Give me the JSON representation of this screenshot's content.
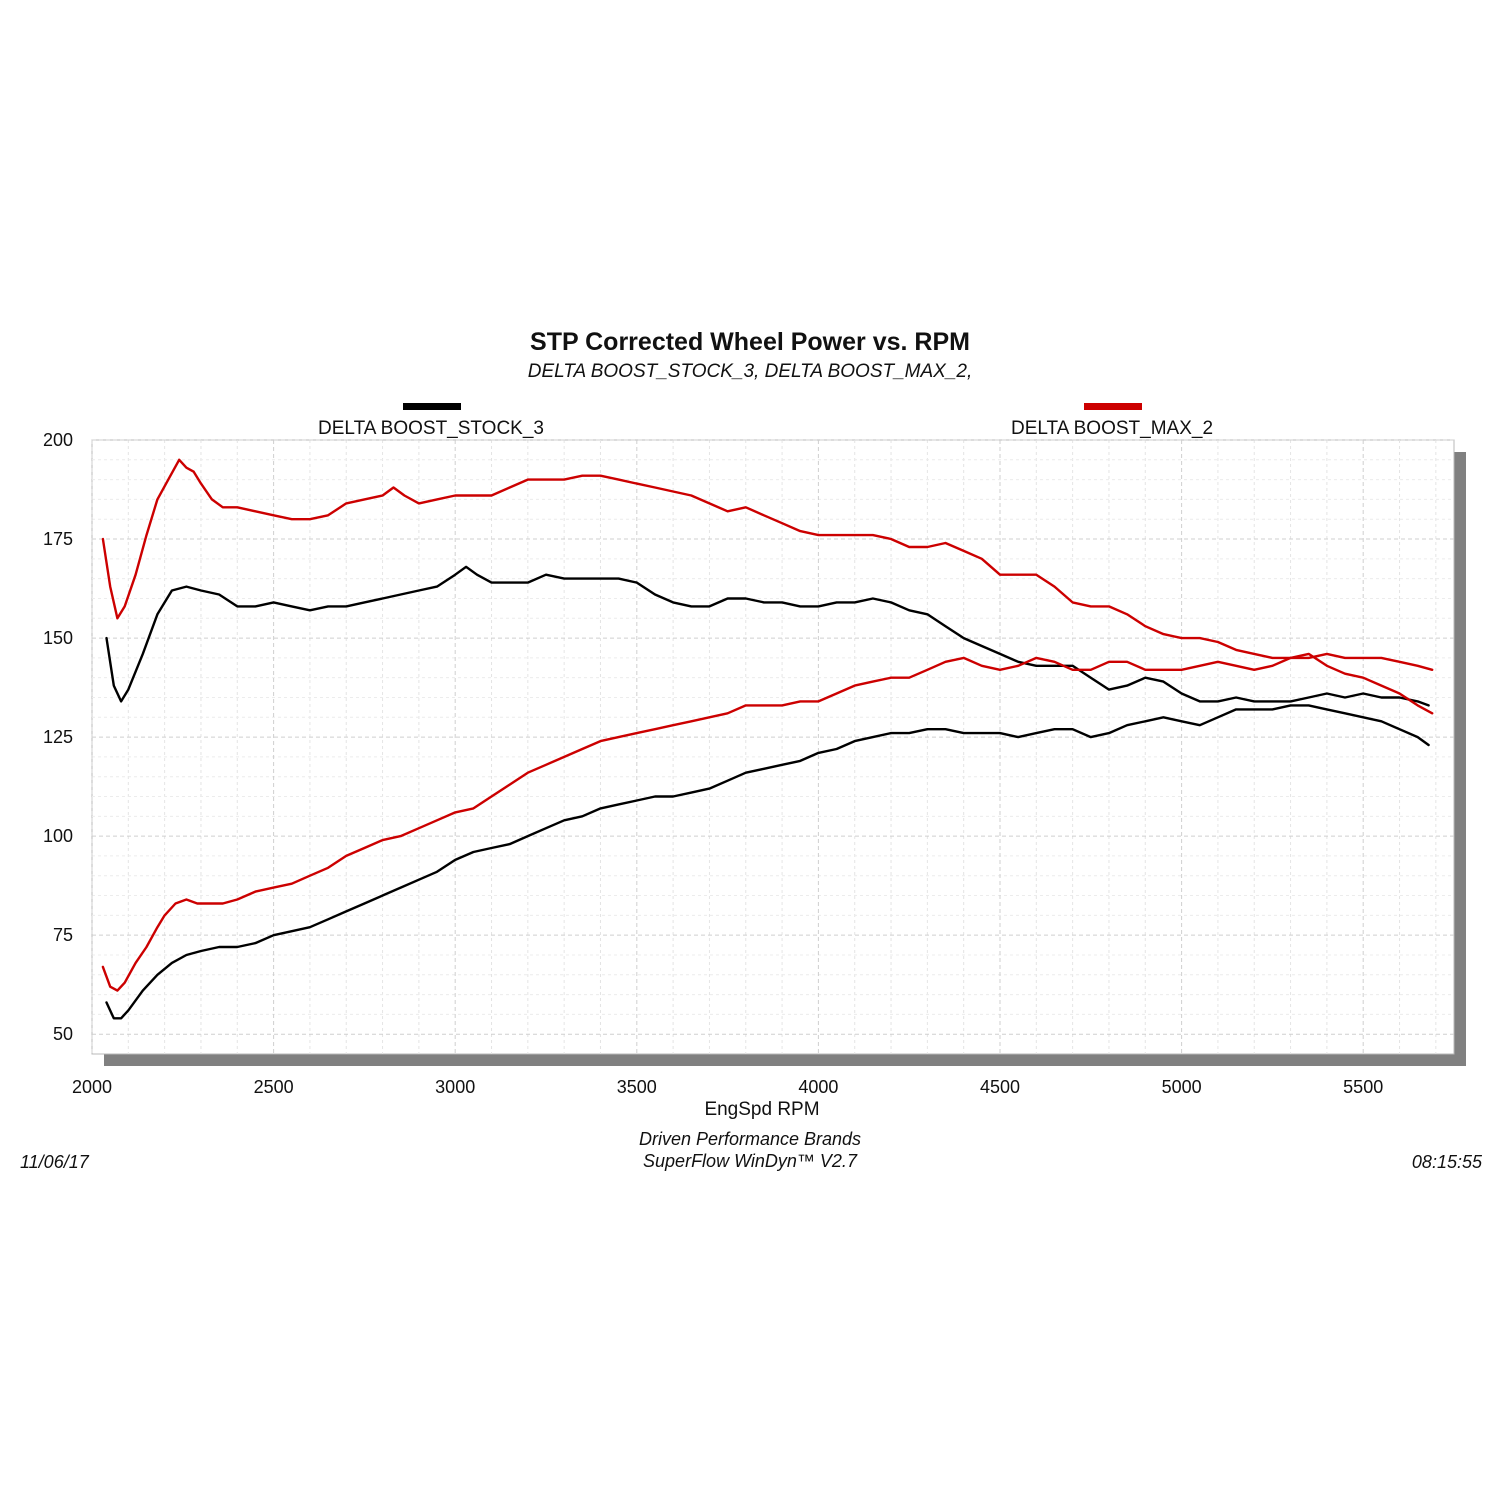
{
  "header": {
    "title": "STP Corrected Wheel Power vs. RPM",
    "subtitle": "DELTA BOOST_STOCK_3, DELTA BOOST_MAX_2,"
  },
  "legend": {
    "items": [
      {
        "label": "DELTA BOOST_STOCK_3",
        "color": "#000000"
      },
      {
        "label": "DELTA BOOST_MAX_2",
        "color": "#cc0000"
      }
    ]
  },
  "footer": {
    "date": "11/06/17",
    "time": "08:15:55",
    "company": "Driven Performance Brands",
    "software": "SuperFlow WinDyn™  V2.7"
  },
  "chart_data": {
    "type": "line",
    "title": "STP Corrected Wheel Power vs. RPM",
    "xlabel": "EngSpd  RPM",
    "ylabel": "",
    "xlim": [
      2000,
      5750
    ],
    "ylim": [
      45,
      200
    ],
    "xticks": [
      2000,
      2500,
      3000,
      3500,
      4000,
      4500,
      5000,
      5500
    ],
    "yticks": [
      50,
      75,
      100,
      125,
      150,
      175,
      200
    ],
    "grid": true,
    "legend_position": "top",
    "series": [
      {
        "name": "DELTA BOOST_STOCK_3",
        "color": "#000000",
        "curve": "power",
        "x": [
          2040,
          2060,
          2080,
          2100,
          2140,
          2180,
          2220,
          2260,
          2300,
          2350,
          2400,
          2450,
          2500,
          2550,
          2600,
          2650,
          2700,
          2750,
          2800,
          2850,
          2900,
          2950,
          3000,
          3030,
          3060,
          3100,
          3150,
          3200,
          3250,
          3300,
          3350,
          3400,
          3450,
          3500,
          3550,
          3600,
          3650,
          3700,
          3750,
          3800,
          3850,
          3900,
          3950,
          4000,
          4050,
          4100,
          4150,
          4200,
          4250,
          4300,
          4350,
          4400,
          4450,
          4500,
          4550,
          4600,
          4650,
          4700,
          4750,
          4800,
          4850,
          4900,
          4950,
          5000,
          5050,
          5100,
          5150,
          5200,
          5250,
          5300,
          5350,
          5400,
          5450,
          5500,
          5550,
          5600,
          5650,
          5680
        ],
        "y": [
          150,
          138,
          134,
          137,
          146,
          156,
          162,
          163,
          162,
          161,
          158,
          158,
          159,
          158,
          157,
          158,
          158,
          159,
          160,
          161,
          162,
          163,
          166,
          168,
          166,
          164,
          164,
          164,
          166,
          165,
          165,
          165,
          165,
          164,
          161,
          159,
          158,
          158,
          160,
          160,
          159,
          159,
          158,
          158,
          159,
          159,
          160,
          159,
          157,
          156,
          153,
          150,
          148,
          146,
          144,
          143,
          143,
          143,
          140,
          137,
          138,
          140,
          139,
          136,
          134,
          134,
          135,
          134,
          134,
          134,
          135,
          136,
          135,
          136,
          135,
          135,
          134,
          133
        ]
      },
      {
        "name": "DELTA BOOST_STOCK_3",
        "color": "#000000",
        "curve": "torque",
        "x": [
          2040,
          2060,
          2080,
          2100,
          2140,
          2180,
          2220,
          2260,
          2300,
          2350,
          2400,
          2450,
          2500,
          2550,
          2600,
          2650,
          2700,
          2750,
          2800,
          2850,
          2900,
          2950,
          3000,
          3050,
          3100,
          3150,
          3200,
          3250,
          3300,
          3350,
          3400,
          3450,
          3500,
          3550,
          3600,
          3650,
          3700,
          3750,
          3800,
          3850,
          3900,
          3950,
          4000,
          4050,
          4100,
          4150,
          4200,
          4250,
          4300,
          4350,
          4400,
          4450,
          4500,
          4550,
          4600,
          4650,
          4700,
          4750,
          4800,
          4850,
          4900,
          4950,
          5000,
          5050,
          5100,
          5150,
          5200,
          5250,
          5300,
          5350,
          5400,
          5450,
          5500,
          5550,
          5600,
          5650,
          5680
        ],
        "y": [
          58,
          54,
          54,
          56,
          61,
          65,
          68,
          70,
          71,
          72,
          72,
          73,
          75,
          76,
          77,
          79,
          81,
          83,
          85,
          87,
          89,
          91,
          94,
          96,
          97,
          98,
          100,
          102,
          104,
          105,
          107,
          108,
          109,
          110,
          110,
          111,
          112,
          114,
          116,
          117,
          118,
          119,
          121,
          122,
          124,
          125,
          126,
          126,
          127,
          127,
          126,
          126,
          126,
          125,
          126,
          127,
          127,
          125,
          126,
          128,
          129,
          130,
          129,
          128,
          130,
          132,
          132,
          132,
          133,
          133,
          132,
          131,
          130,
          129,
          127,
          125,
          123
        ]
      },
      {
        "name": "DELTA BOOST_MAX_2",
        "color": "#cc0000",
        "curve": "power",
        "x": [
          2030,
          2050,
          2070,
          2090,
          2120,
          2150,
          2180,
          2210,
          2240,
          2260,
          2280,
          2300,
          2330,
          2360,
          2400,
          2450,
          2500,
          2550,
          2600,
          2650,
          2700,
          2750,
          2800,
          2830,
          2860,
          2900,
          2950,
          3000,
          3050,
          3100,
          3150,
          3200,
          3250,
          3300,
          3350,
          3400,
          3450,
          3500,
          3550,
          3600,
          3650,
          3700,
          3750,
          3800,
          3850,
          3900,
          3950,
          4000,
          4050,
          4100,
          4150,
          4200,
          4250,
          4300,
          4350,
          4400,
          4450,
          4500,
          4550,
          4600,
          4650,
          4700,
          4750,
          4800,
          4850,
          4900,
          4950,
          5000,
          5050,
          5100,
          5150,
          5200,
          5250,
          5300,
          5350,
          5400,
          5450,
          5500,
          5550,
          5600,
          5650,
          5690
        ],
        "y": [
          175,
          163,
          155,
          158,
          166,
          176,
          185,
          190,
          195,
          193,
          192,
          189,
          185,
          183,
          183,
          182,
          181,
          180,
          180,
          181,
          184,
          185,
          186,
          188,
          186,
          184,
          185,
          186,
          186,
          186,
          188,
          190,
          190,
          190,
          191,
          191,
          190,
          189,
          188,
          187,
          186,
          184,
          182,
          183,
          181,
          179,
          177,
          176,
          176,
          176,
          176,
          175,
          173,
          173,
          174,
          172,
          170,
          166,
          166,
          166,
          163,
          159,
          158,
          158,
          156,
          153,
          151,
          150,
          150,
          149,
          147,
          146,
          145,
          145,
          145,
          146,
          145,
          145,
          145,
          144,
          143,
          142
        ]
      },
      {
        "name": "DELTA BOOST_MAX_2",
        "color": "#cc0000",
        "curve": "torque",
        "x": [
          2030,
          2050,
          2070,
          2090,
          2120,
          2150,
          2180,
          2200,
          2230,
          2260,
          2290,
          2330,
          2360,
          2400,
          2450,
          2500,
          2550,
          2600,
          2650,
          2700,
          2750,
          2800,
          2850,
          2900,
          2950,
          3000,
          3050,
          3100,
          3150,
          3200,
          3250,
          3300,
          3350,
          3400,
          3450,
          3500,
          3550,
          3600,
          3650,
          3700,
          3750,
          3800,
          3850,
          3900,
          3950,
          4000,
          4050,
          4100,
          4150,
          4200,
          4250,
          4300,
          4350,
          4400,
          4450,
          4500,
          4550,
          4600,
          4650,
          4700,
          4750,
          4800,
          4850,
          4900,
          4950,
          5000,
          5050,
          5100,
          5150,
          5200,
          5250,
          5300,
          5350,
          5400,
          5450,
          5500,
          5550,
          5600,
          5650,
          5690
        ],
        "y": [
          67,
          62,
          61,
          63,
          68,
          72,
          77,
          80,
          83,
          84,
          83,
          83,
          83,
          84,
          86,
          87,
          88,
          90,
          92,
          95,
          97,
          99,
          100,
          102,
          104,
          106,
          107,
          110,
          113,
          116,
          118,
          120,
          122,
          124,
          125,
          126,
          127,
          128,
          129,
          130,
          131,
          133,
          133,
          133,
          134,
          134,
          136,
          138,
          139,
          140,
          140,
          142,
          144,
          145,
          143,
          142,
          143,
          145,
          144,
          142,
          142,
          144,
          144,
          142,
          142,
          142,
          143,
          144,
          143,
          142,
          143,
          145,
          146,
          143,
          141,
          140,
          138,
          136,
          133,
          131
        ]
      }
    ]
  }
}
